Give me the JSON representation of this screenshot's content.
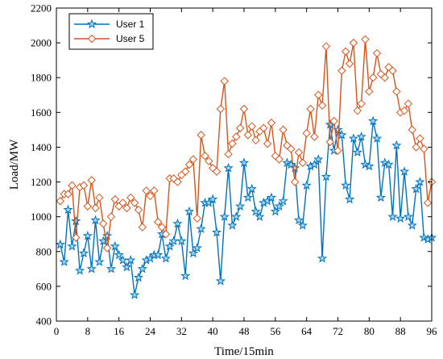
{
  "chart_data": {
    "type": "line",
    "title": "",
    "xlabel": "Time/15min",
    "ylabel": "Load/MW",
    "xlim": [
      0,
      96
    ],
    "ylim": [
      400,
      2200
    ],
    "xticks": [
      0,
      8,
      16,
      24,
      32,
      40,
      48,
      56,
      64,
      72,
      80,
      88,
      96
    ],
    "yticks": [
      400,
      600,
      800,
      1000,
      1200,
      1400,
      1600,
      1800,
      2000,
      2200
    ],
    "grid": false,
    "legend_position": "top-left",
    "x": [
      1,
      2,
      3,
      4,
      5,
      6,
      7,
      8,
      9,
      10,
      11,
      12,
      13,
      14,
      15,
      16,
      17,
      18,
      19,
      20,
      21,
      22,
      23,
      24,
      25,
      26,
      27,
      28,
      29,
      30,
      31,
      32,
      33,
      34,
      35,
      36,
      37,
      38,
      39,
      40,
      41,
      42,
      43,
      44,
      45,
      46,
      47,
      48,
      49,
      50,
      51,
      52,
      53,
      54,
      55,
      56,
      57,
      58,
      59,
      60,
      61,
      62,
      63,
      64,
      65,
      66,
      67,
      68,
      69,
      70,
      71,
      72,
      73,
      74,
      75,
      76,
      77,
      78,
      79,
      80,
      81,
      82,
      83,
      84,
      85,
      86,
      87,
      88,
      89,
      90,
      91,
      92,
      93,
      94,
      95,
      96
    ],
    "series": [
      {
        "name": "User 1",
        "color": "#0072BD",
        "marker": "star",
        "values": [
          840,
          740,
          1040,
          830,
          975,
          690,
          790,
          890,
          700,
          980,
          740,
          860,
          890,
          700,
          830,
          780,
          750,
          710,
          750,
          550,
          650,
          700,
          750,
          760,
          780,
          780,
          900,
          760,
          830,
          860,
          960,
          860,
          660,
          1030,
          790,
          820,
          930,
          1080,
          1080,
          1100,
          910,
          630,
          1000,
          1280,
          950,
          1000,
          1060,
          1310,
          1110,
          1160,
          1030,
          1000,
          1080,
          1090,
          1110,
          1030,
          1060,
          1090,
          1310,
          1300,
          1280,
          980,
          950,
          1180,
          1290,
          1300,
          1330,
          760,
          1230,
          1530,
          1380,
          1500,
          1470,
          1180,
          1100,
          1450,
          1370,
          1460,
          1300,
          1290,
          1550,
          1450,
          1110,
          1310,
          1300,
          1000,
          1410,
          990,
          1260,
          1000,
          950,
          1160,
          1200,
          880,
          870,
          880
        ]
      },
      {
        "name": "User 5",
        "color": "#D95319",
        "marker": "diamond",
        "values": [
          1090,
          1130,
          1130,
          1180,
          880,
          1170,
          1180,
          1060,
          1210,
          1050,
          1110,
          960,
          820,
          1000,
          1100,
          1060,
          1080,
          1050,
          1110,
          1080,
          1040,
          940,
          1150,
          1120,
          1150,
          970,
          940,
          900,
          1220,
          1220,
          1200,
          1240,
          1260,
          1300,
          1330,
          990,
          1470,
          1350,
          1320,
          1280,
          1260,
          1620,
          1780,
          1360,
          1420,
          1460,
          1510,
          1620,
          1470,
          1520,
          1440,
          1490,
          1510,
          1420,
          1540,
          1350,
          1330,
          1500,
          1410,
          1390,
          1200,
          1370,
          1310,
          1480,
          1620,
          1460,
          1700,
          1640,
          1980,
          1430,
          1550,
          1380,
          1840,
          1950,
          1880,
          2000,
          1610,
          1650,
          2020,
          1720,
          1800,
          1940,
          1820,
          1800,
          1860,
          1840,
          1720,
          1600,
          1610,
          1650,
          1500,
          1400,
          1450,
          1390,
          1080,
          1200
        ]
      }
    ],
    "legend": [
      "User 1",
      "User 5"
    ]
  }
}
